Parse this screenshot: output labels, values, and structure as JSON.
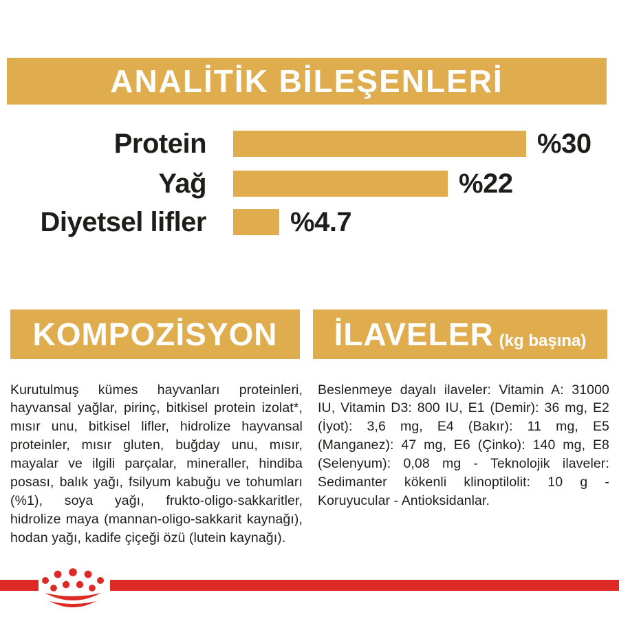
{
  "theme": {
    "gold": "#dfad4d",
    "red": "#dd2a25",
    "text": "#1d1d1b",
    "background": "#ffffff"
  },
  "analytics_section": {
    "title": "ANALİTİK BİLEŞENLERİ"
  },
  "chart_data": {
    "type": "bar",
    "orientation": "horizontal",
    "title": "ANALİTİK BİLEŞENLERİ",
    "categories": [
      "Protein",
      "Yağ",
      "Diyetsel lifler"
    ],
    "values": [
      30,
      22,
      4.7
    ],
    "value_labels": [
      "%30",
      "%22",
      "%4.7"
    ],
    "unit": "percent",
    "xlim": [
      0,
      30
    ],
    "bar_color": "#dfad4d",
    "grid": false,
    "legend": false
  },
  "composition_section": {
    "title": "KOMPOZİSYON",
    "body": "Kurutulmuş kümes hayvanları proteinleri, hayvansal yağlar, pirinç, bitkisel protein izolat*, mısır unu, bitkisel lifler, hidrolize hayvansal proteinler, mısır gluten, buğday unu, mısır, mayalar ve ilgili parçalar, mineraller, hindiba posası, balık yağı, fsilyum kabuğu ve tohumları (%1), soya yağı, frukto-oligo-sakkaritler, hidrolize maya (mannan-oligo-sakkarit kaynağı), hodan yağı, kadife çiçeği özü (lutein kaynağı)."
  },
  "additives_section": {
    "title": "İLAVELER",
    "subtitle": "(kg başına)",
    "body": "Beslenmeye dayalı ilaveler: Vitamin A: 31000 IU, Vitamin D3: 800 IU, E1 (Demir): 36 mg, E2 (İyot): 3,6 mg, E4 (Bakır): 11 mg, E5 (Manganez): 47 mg, E6 (Çinko): 140 mg, E8 (Selenyum): 0,08 mg - Teknolojik ilaveler: Sedimanter kökenli klinoptilolit: 10 g - Koruyucular - Antioksidanlar."
  },
  "footer": {
    "logo": "royal-canin-crown"
  }
}
